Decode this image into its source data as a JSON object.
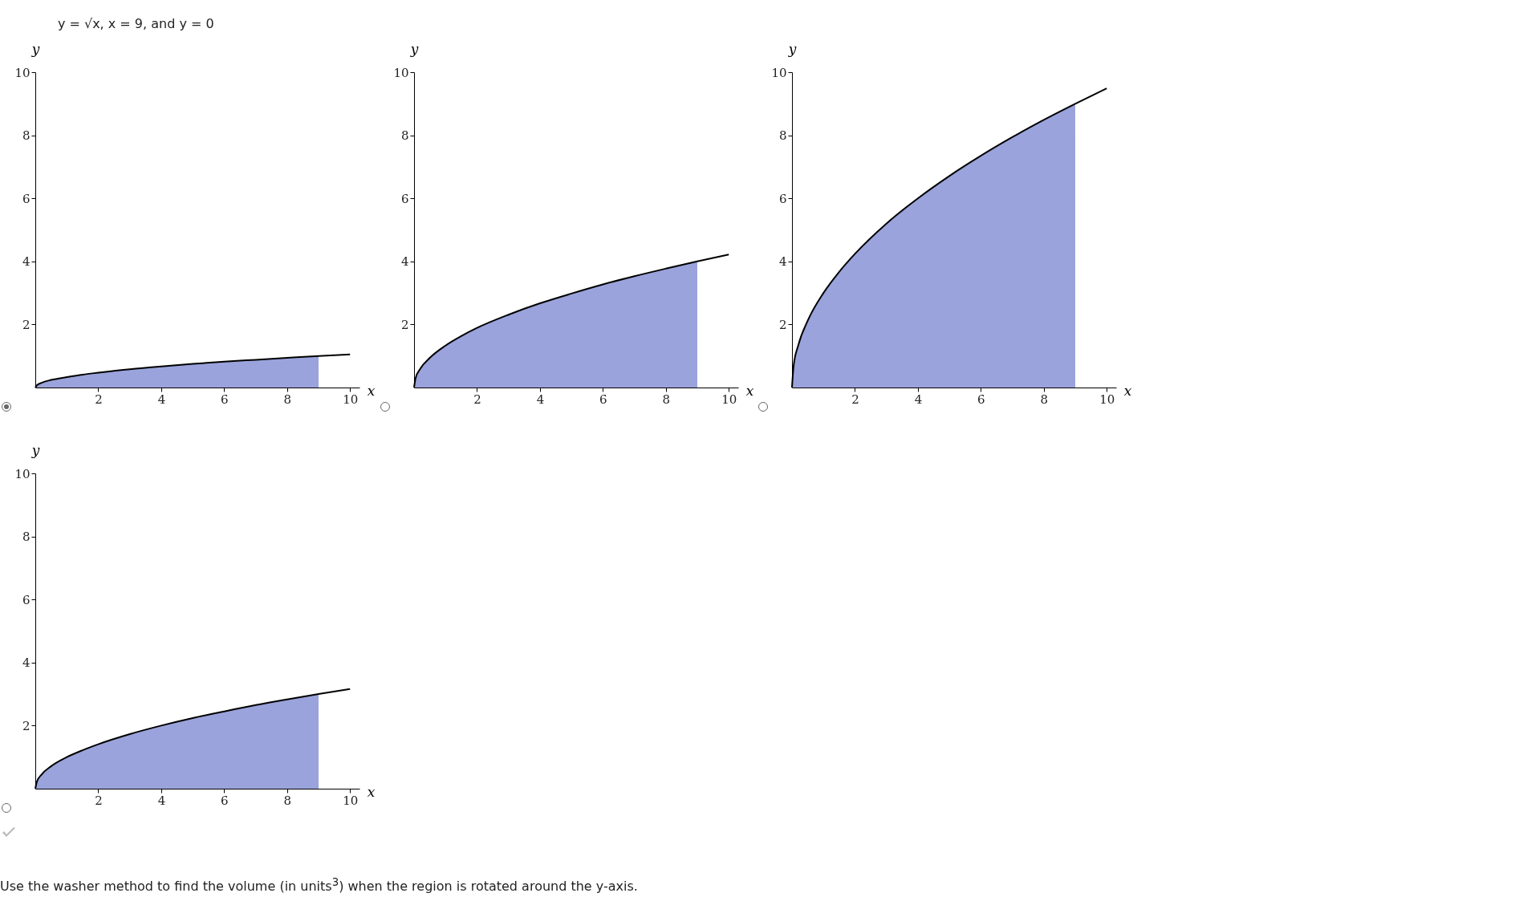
{
  "chart_data": [
    {
      "type": "area",
      "title": "y = √x, x = 9, and y = 0",
      "xlabel": "x",
      "ylabel": "y",
      "xlim": [
        0,
        10.3
      ],
      "ylim": [
        0,
        10
      ],
      "xticks": [
        2,
        4,
        6,
        8,
        10
      ],
      "yticks": [
        2,
        4,
        6,
        8,
        10
      ],
      "series": [
        {
          "type": "area",
          "color": "#9aa3db",
          "x": [
            0,
            0.05,
            0.2,
            0.5,
            1,
            1.5,
            2,
            3,
            4,
            5,
            6,
            7,
            8,
            9
          ],
          "values": [
            0,
            0.07,
            0.15,
            0.24,
            0.33,
            0.41,
            0.47,
            0.58,
            0.67,
            0.75,
            0.82,
            0.88,
            0.94,
            1
          ]
        },
        {
          "type": "line",
          "color": "#000000",
          "x": [
            0,
            0.05,
            0.2,
            0.5,
            1,
            1.5,
            2,
            3,
            4,
            5,
            6,
            7,
            8,
            9,
            10
          ],
          "values": [
            0,
            0.07,
            0.15,
            0.24,
            0.33,
            0.41,
            0.47,
            0.58,
            0.67,
            0.75,
            0.82,
            0.88,
            0.94,
            1,
            1.05
          ]
        }
      ]
    },
    {
      "type": "area",
      "xlabel": "x",
      "ylabel": "y",
      "xlim": [
        0,
        10.3
      ],
      "ylim": [
        0,
        10
      ],
      "xticks": [
        2,
        4,
        6,
        8,
        10
      ],
      "yticks": [
        2,
        4,
        6,
        8,
        10
      ],
      "series": [
        {
          "type": "area",
          "color": "#9aa3db",
          "x": [
            0,
            0.05,
            0.2,
            0.5,
            1,
            1.5,
            2,
            3,
            4,
            5,
            6,
            7,
            8,
            9
          ],
          "values": [
            0,
            0.3,
            0.6,
            0.94,
            1.33,
            1.63,
            1.89,
            2.31,
            2.67,
            2.98,
            3.27,
            3.53,
            3.77,
            4
          ]
        },
        {
          "type": "line",
          "color": "#000000",
          "x": [
            0,
            0.05,
            0.2,
            0.5,
            1,
            1.5,
            2,
            3,
            4,
            5,
            6,
            7,
            8,
            9,
            10
          ],
          "values": [
            0,
            0.3,
            0.6,
            0.94,
            1.33,
            1.63,
            1.89,
            2.31,
            2.67,
            2.98,
            3.27,
            3.53,
            3.77,
            4,
            4.22
          ]
        }
      ]
    },
    {
      "type": "area",
      "xlabel": "x",
      "ylabel": "y",
      "xlim": [
        0,
        10.3
      ],
      "ylim": [
        0,
        10
      ],
      "xticks": [
        2,
        4,
        6,
        8,
        10
      ],
      "yticks": [
        2,
        4,
        6,
        8,
        10
      ],
      "series": [
        {
          "type": "area",
          "color": "#9aa3db",
          "x": [
            0,
            0.05,
            0.2,
            0.5,
            1,
            1.5,
            2,
            3,
            4,
            5,
            6,
            7,
            8,
            9
          ],
          "values": [
            0,
            0.67,
            1.34,
            2.12,
            3,
            3.67,
            4.24,
            5.2,
            6,
            6.71,
            7.35,
            7.94,
            8.49,
            9
          ]
        },
        {
          "type": "line",
          "color": "#000000",
          "x": [
            0,
            0.05,
            0.2,
            0.5,
            1,
            1.5,
            2,
            3,
            4,
            5,
            6,
            7,
            8,
            9,
            10
          ],
          "values": [
            0,
            0.67,
            1.34,
            2.12,
            3,
            3.67,
            4.24,
            5.2,
            6,
            6.71,
            7.35,
            7.94,
            8.49,
            9,
            9.49
          ]
        }
      ]
    },
    {
      "type": "area",
      "xlabel": "x",
      "ylabel": "y",
      "xlim": [
        0,
        10.3
      ],
      "ylim": [
        0,
        10
      ],
      "xticks": [
        2,
        4,
        6,
        8,
        10
      ],
      "yticks": [
        2,
        4,
        6,
        8,
        10
      ],
      "annotations": [
        "Use the washer method to find the volume (in units$^{3}$) when the region is rotated around the y-axis."
      ],
      "series": [
        {
          "type": "area",
          "color": "#9aa3db",
          "x": [
            0,
            0.05,
            0.2,
            0.5,
            1,
            1.5,
            2,
            3,
            4,
            5,
            6,
            7,
            8,
            9
          ],
          "values": [
            0,
            0.22,
            0.45,
            0.71,
            1,
            1.22,
            1.41,
            1.73,
            2,
            2.24,
            2.45,
            2.65,
            2.83,
            3
          ]
        },
        {
          "type": "line",
          "color": "#000000",
          "x": [
            0,
            0.05,
            0.2,
            0.5,
            1,
            1.5,
            2,
            3,
            4,
            5,
            6,
            7,
            8,
            9,
            10
          ],
          "values": [
            0,
            0.22,
            0.45,
            0.71,
            1,
            1.22,
            1.41,
            1.73,
            2,
            2.24,
            2.45,
            2.65,
            2.83,
            3,
            3.16
          ]
        }
      ]
    }
  ]
}
